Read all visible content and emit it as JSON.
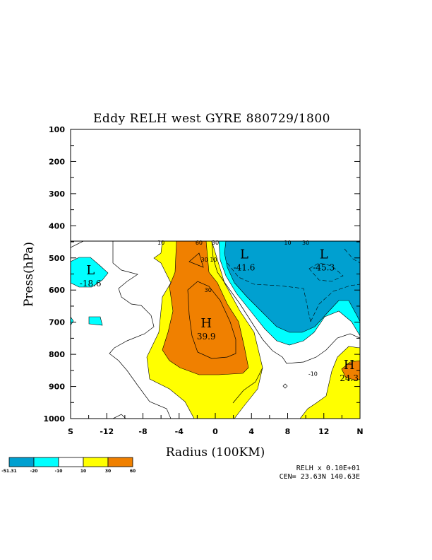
{
  "chart_data": {
    "type": "contour",
    "title": "Eddy RELH west GYRE 880729/1800",
    "xlabel": "Radius (100KM)",
    "ylabel": "Press(hPa)",
    "x_ticks": [
      {
        "v": -16,
        "label": "S"
      },
      {
        "v": -12,
        "label": "-12"
      },
      {
        "v": -8,
        "label": "-8"
      },
      {
        "v": -4,
        "label": "-4"
      },
      {
        "v": 0,
        "label": "0"
      },
      {
        "v": 4,
        "label": "4"
      },
      {
        "v": 8,
        "label": "8"
      },
      {
        "v": 12,
        "label": "12"
      },
      {
        "v": 16,
        "label": "N"
      }
    ],
    "y_ticks": [
      100,
      200,
      300,
      400,
      500,
      600,
      700,
      800,
      900,
      1000
    ],
    "xlim": [
      -16,
      16
    ],
    "ylim": [
      1000,
      100
    ],
    "data_top_pressure": 450,
    "colorbar": {
      "colors": [
        "#00a0d0",
        "#00ffff",
        "#ffffff",
        "#ffff00",
        "#f08000"
      ],
      "labels": [
        "-51.31",
        "-20",
        "-10",
        "10",
        "30",
        "60"
      ]
    },
    "extrema": [
      {
        "kind": "L",
        "value": "-18.6",
        "x": -13.8,
        "p": 560
      },
      {
        "kind": "L",
        "value": "-41.6",
        "x": 3.2,
        "p": 510
      },
      {
        "kind": "L",
        "value": "-45.3",
        "x": 12.0,
        "p": 510
      },
      {
        "kind": "H",
        "value": "39.9",
        "x": -1.0,
        "p": 725
      },
      {
        "kind": "H",
        "value": "24.3",
        "x": 14.8,
        "p": 855
      }
    ],
    "contour_labels": [
      {
        "text": "10",
        "x": -6.0,
        "p": 452
      },
      {
        "text": "60",
        "x": -1.8,
        "p": 452
      },
      {
        "text": "30",
        "x": 0.0,
        "p": 452
      },
      {
        "text": "10",
        "x": 8.0,
        "p": 452
      },
      {
        "text": "30",
        "x": 10.0,
        "p": 452
      },
      {
        "text": "30",
        "x": -1.2,
        "p": 505
      },
      {
        "text": "10",
        "x": -0.2,
        "p": 505
      },
      {
        "text": "30",
        "x": -0.8,
        "p": 600
      },
      {
        "text": "-10",
        "x": 10.8,
        "p": 860
      }
    ],
    "footer": {
      "line1": "RELH x  0.10E+01",
      "line2": "CEN= 23.63N  140.63E"
    }
  }
}
